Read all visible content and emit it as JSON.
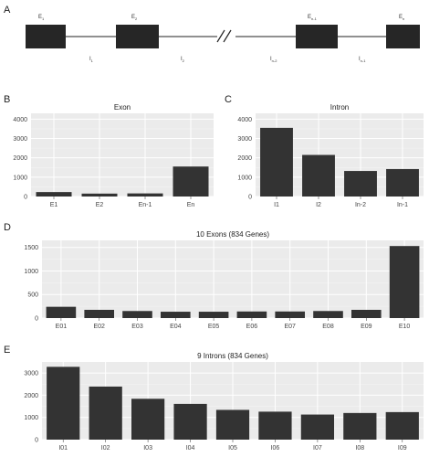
{
  "panel_a": {
    "letter": "A",
    "exon_labels": [
      "E",
      "E",
      "E",
      "E"
    ],
    "exon_subs": [
      "1",
      "2",
      "n-1",
      "n"
    ],
    "intron_labels": [
      "I",
      "I",
      "I",
      "I"
    ],
    "intron_subs": [
      "1",
      "2",
      "n-2",
      "n-1"
    ]
  },
  "chart_data": [
    {
      "panel": "B",
      "type": "bar",
      "title": "Exon",
      "categories": [
        "E1",
        "E2",
        "En-1",
        "En"
      ],
      "values": [
        230,
        150,
        160,
        1550
      ],
      "ylim": [
        0,
        4300
      ],
      "yticks": [
        0,
        1000,
        2000,
        3000,
        4000
      ],
      "grid": true,
      "bar_color": "#333333",
      "panel_bg": "#ebebeb"
    },
    {
      "panel": "C",
      "type": "bar",
      "title": "Intron",
      "categories": [
        "I1",
        "I2",
        "In-2",
        "In-1"
      ],
      "values": [
        3550,
        2150,
        1320,
        1420
      ],
      "ylim": [
        0,
        4300
      ],
      "yticks": [
        0,
        1000,
        2000,
        3000,
        4000
      ],
      "grid": true,
      "bar_color": "#333333",
      "panel_bg": "#ebebeb"
    },
    {
      "panel": "D",
      "type": "bar",
      "title": "10 Exons (834 Genes)",
      "categories": [
        "E01",
        "E02",
        "E03",
        "E04",
        "E05",
        "E06",
        "E07",
        "E08",
        "E09",
        "E10"
      ],
      "values": [
        240,
        175,
        150,
        135,
        135,
        140,
        140,
        150,
        175,
        1530
      ],
      "ylim": [
        0,
        1650
      ],
      "yticks": [
        0,
        500,
        1000,
        1500
      ],
      "grid": true,
      "bar_color": "#333333",
      "panel_bg": "#ebebeb"
    },
    {
      "panel": "E",
      "type": "bar",
      "title": "9 Introns (834 Genes)",
      "categories": [
        "I01",
        "I02",
        "I03",
        "I04",
        "I05",
        "I06",
        "I07",
        "I08",
        "I09"
      ],
      "values": [
        3280,
        2390,
        1840,
        1610,
        1340,
        1260,
        1130,
        1200,
        1240
      ],
      "ylim": [
        0,
        3500
      ],
      "yticks": [
        0,
        1000,
        2000,
        3000
      ],
      "grid": true,
      "bar_color": "#333333",
      "panel_bg": "#ebebeb"
    }
  ]
}
